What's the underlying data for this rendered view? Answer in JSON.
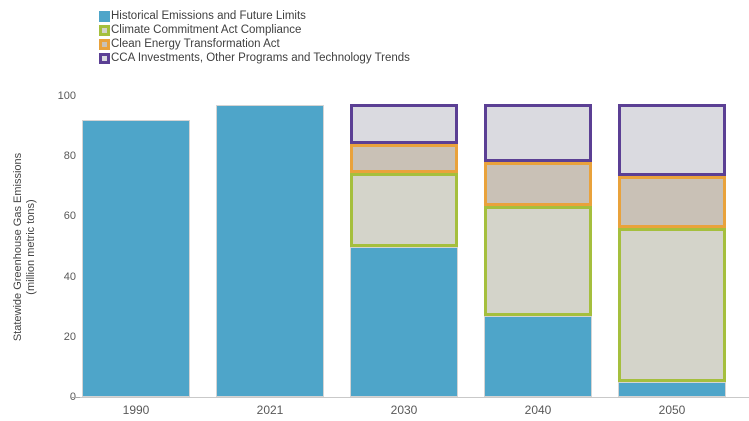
{
  "colors": {
    "historical": "#4ea5c9",
    "cca_compliance": "#a5bf3d",
    "ceta": "#e9a23b",
    "cca_investments": "#5b3f94",
    "fill_cca_compliance": "#d4d4ca",
    "fill_ceta": "#c9c1b6",
    "fill_cca_investments": "#dadae0",
    "axis_line": "#c9c9c9",
    "axis_text": "#595959",
    "legend_text": "#3f3f3f"
  },
  "legend": {
    "items": [
      {
        "label": "Historical Emissions and Future Limits",
        "color_key": "historical",
        "style": "solid"
      },
      {
        "label": "Climate Commitment Act Compliance",
        "color_key": "cca_compliance",
        "style": "outlined"
      },
      {
        "label": "Clean Energy Transformation Act",
        "color_key": "ceta",
        "style": "outlined"
      },
      {
        "label": "CCA Investments, Other Programs and Technology Trends",
        "color_key": "cca_investments",
        "style": "outlined"
      }
    ]
  },
  "y_axis": {
    "title_line1": "Statewide Greenhouse Gas Emissions",
    "title_line2": "(million metric tons)",
    "ticks": [
      0,
      20,
      40,
      60,
      80,
      100
    ],
    "max": 100
  },
  "x_axis": {
    "labels": [
      "1990",
      "2021",
      "2030",
      "2040",
      "2050"
    ]
  },
  "chart_data": {
    "type": "bar",
    "stacked": true,
    "title": "",
    "xlabel": "",
    "ylabel": "Statewide Greenhouse Gas Emissions (million metric tons)",
    "ylim": [
      0,
      100
    ],
    "grid": false,
    "legend_position": "top-left",
    "categories": [
      "1990",
      "2021",
      "2030",
      "2040",
      "2050"
    ],
    "series": [
      {
        "name": "Historical Emissions and Future Limits",
        "style": "solid_bar",
        "color_key": "historical",
        "values": [
          92,
          97,
          50,
          27,
          5
        ]
      },
      {
        "name": "Climate Commitment Act Compliance",
        "style": "outlined_box",
        "color_key": "cca_compliance",
        "values": [
          null,
          null,
          24.5,
          36.5,
          51
        ]
      },
      {
        "name": "Clean Energy Transformation Act",
        "style": "outlined_box",
        "color_key": "ceta",
        "values": [
          null,
          null,
          9.5,
          14.5,
          17.5
        ]
      },
      {
        "name": "CCA Investments, Other Programs and Technology Trends",
        "style": "outlined_box",
        "color_key": "cca_investments",
        "values": [
          null,
          null,
          13.5,
          19.5,
          24
        ]
      }
    ],
    "stack_tops": {
      "2030": 97.5,
      "2040": 97.5,
      "2050": 97.5
    }
  }
}
